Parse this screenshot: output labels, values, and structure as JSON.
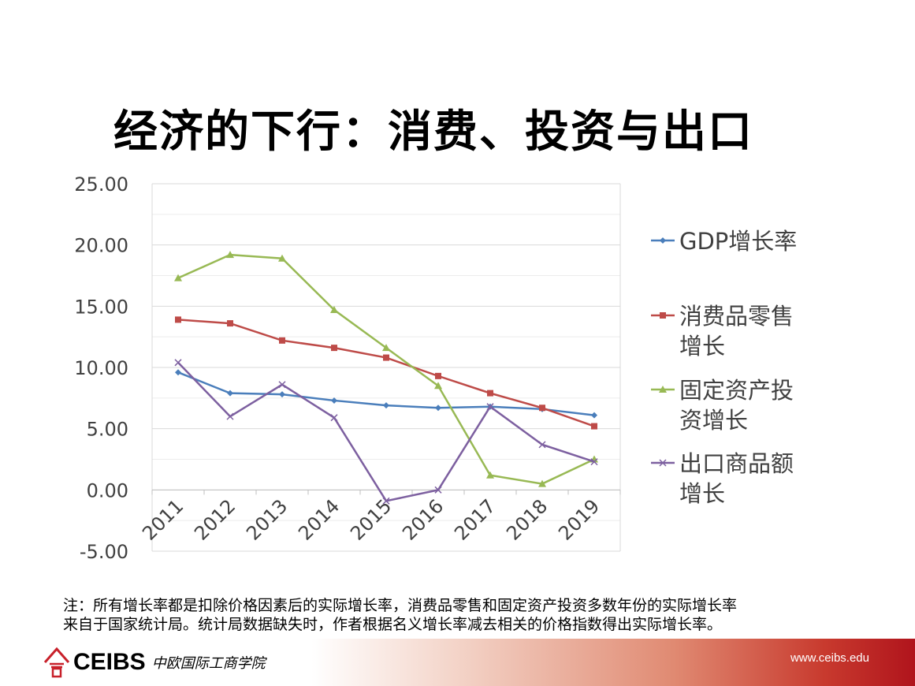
{
  "slide": {
    "title": "经济的下行：消费、投资与出口",
    "note_lines": [
      "注：所有增长率都是扣除价格因素后的实际增长率，消费品零售和固定资产投资多数年份的实际增长率",
      "来自于国家统计局。统计局数据缺失时，作者根据名义增长率减去相关的价格指数得出实际增长率。"
    ],
    "footer": {
      "logo": "CEIBS",
      "logo_cn": "中欧国际工商学院",
      "url": "www.ceibs.edu"
    }
  },
  "chart_data": {
    "type": "line",
    "title": "经济的下行：消费、投资与出口",
    "xlabel": "",
    "ylabel": "",
    "categories": [
      "2011",
      "2012",
      "2013",
      "2014",
      "2015",
      "2016",
      "2017",
      "2018",
      "2019"
    ],
    "ylim": [
      -5,
      25
    ],
    "yticks": [
      "25.00",
      "20.00",
      "15.00",
      "10.00",
      "5.00",
      "0.00",
      "-5.00"
    ],
    "ytick_values": [
      25,
      20,
      15,
      10,
      5,
      0,
      -5
    ],
    "grid": true,
    "legend_position": "right",
    "series": [
      {
        "name": "GDP增长率",
        "legend_lines": [
          "GDP增长率"
        ],
        "color": "#4a7ebb",
        "marker": "diamond",
        "values": [
          9.6,
          7.9,
          7.8,
          7.3,
          6.9,
          6.7,
          6.8,
          6.6,
          6.1
        ]
      },
      {
        "name": "消费品零售增长",
        "legend_lines": [
          "消费品零售",
          "增长"
        ],
        "color": "#be4b48",
        "marker": "square",
        "values": [
          13.9,
          13.6,
          12.2,
          11.6,
          10.8,
          9.3,
          7.9,
          6.7,
          5.2
        ]
      },
      {
        "name": "固定资产投资增长",
        "legend_lines": [
          "固定资产投",
          "资增长"
        ],
        "color": "#98b954",
        "marker": "triangle",
        "values": [
          17.3,
          19.2,
          18.9,
          14.7,
          11.6,
          8.5,
          1.2,
          0.5,
          2.5
        ]
      },
      {
        "name": "出口商品额增长",
        "legend_lines": [
          "出口商品额",
          "增长"
        ],
        "color": "#7d60a0",
        "marker": "x",
        "values": [
          10.4,
          6.0,
          8.6,
          5.9,
          -0.9,
          0.0,
          6.8,
          3.7,
          2.3
        ]
      }
    ]
  }
}
